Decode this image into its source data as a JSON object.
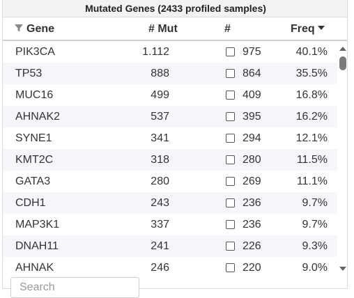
{
  "panel": {
    "title": "Mutated Genes (2433 profiled samples)"
  },
  "columns": {
    "gene": "Gene",
    "mut": "# Mut",
    "count": "#",
    "freq": "Freq"
  },
  "sort": {
    "column": "Freq",
    "direction": "descending"
  },
  "rows": [
    {
      "gene": "PIK3CA",
      "mut": "1.112",
      "count": "975",
      "freq": "40.1%"
    },
    {
      "gene": "TP53",
      "mut": "888",
      "count": "864",
      "freq": "35.5%"
    },
    {
      "gene": "MUC16",
      "mut": "499",
      "count": "409",
      "freq": "16.8%"
    },
    {
      "gene": "AHNAK2",
      "mut": "537",
      "count": "395",
      "freq": "16.2%"
    },
    {
      "gene": "SYNE1",
      "mut": "341",
      "count": "294",
      "freq": "12.1%"
    },
    {
      "gene": "KMT2C",
      "mut": "318",
      "count": "280",
      "freq": "11.5%"
    },
    {
      "gene": "GATA3",
      "mut": "280",
      "count": "269",
      "freq": "11.1%"
    },
    {
      "gene": "CDH1",
      "mut": "243",
      "count": "236",
      "freq": "9.7%"
    },
    {
      "gene": "MAP3K1",
      "mut": "337",
      "count": "236",
      "freq": "9.7%"
    },
    {
      "gene": "DNAH11",
      "mut": "241",
      "count": "226",
      "freq": "9.3%"
    },
    {
      "gene": "AHNAK",
      "mut": "246",
      "count": "220",
      "freq": "9.0%"
    }
  ],
  "search": {
    "placeholder": "Search",
    "value": ""
  },
  "icons": {
    "filter": "filter-icon",
    "sort": "sort-desc-icon",
    "scroll_up": "scroll-up-icon",
    "scroll_down": "scroll-down-icon"
  },
  "colors": {
    "header_bg": "#f2f2f2",
    "row_alt_bg": "#f4f6fa",
    "icon": "#555555"
  }
}
